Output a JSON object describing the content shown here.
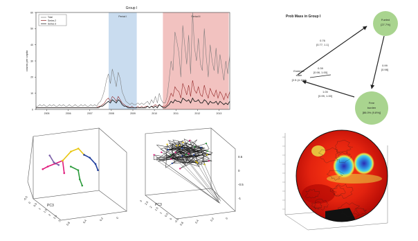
{
  "figure": {
    "accent_colors": {
      "blue_band": "#c9dcef",
      "red_band": "#f2c2c0",
      "node_green": "#a9d48f",
      "series_dark": "#1b1b1b",
      "series_red": "#8b1a1a",
      "series_gray": "#777777"
    }
  },
  "chart_data": [
    {
      "type": "line",
      "title": "Group I",
      "ylabel": "counts per capita",
      "legend": {
        "placement": "top-left",
        "entries": [
          "Total",
          "Series 2",
          "Series 3"
        ]
      },
      "bands": [
        {
          "label": "Period I",
          "color": "#c9dcef",
          "x_range": [
            0.375,
            0.52
          ]
        },
        {
          "label": "Period II",
          "color": "#f2c2c0",
          "x_range": [
            0.655,
            0.995
          ]
        }
      ],
      "x_ticks": [
        "2005",
        "2006",
        "2007",
        "2008",
        "2009",
        "2010",
        "2011",
        "2012",
        "2013"
      ],
      "y_ticks": [
        "0",
        "10",
        "20",
        "30",
        "40",
        "50",
        "60"
      ],
      "ylim": [
        0,
        60
      ],
      "series": [
        {
          "name": "Total",
          "color": "#777777",
          "values": [
            2,
            2,
            3,
            2,
            3,
            2,
            2,
            3,
            2,
            3,
            2,
            2,
            3,
            2,
            3,
            2,
            2,
            3,
            2,
            2,
            3,
            2,
            2,
            3,
            2,
            3,
            2,
            2,
            3,
            2,
            3,
            2,
            4,
            5,
            8,
            12,
            18,
            22,
            16,
            25,
            20,
            14,
            23,
            19,
            11,
            8,
            5,
            4,
            3,
            4,
            3,
            3,
            4,
            3,
            4,
            3,
            4,
            5,
            3,
            6,
            4,
            8,
            4,
            10,
            6,
            4,
            4,
            8,
            18,
            30,
            24,
            48,
            42,
            35,
            20,
            52,
            40,
            28,
            46,
            22,
            60,
            38,
            30,
            44,
            28,
            24,
            50,
            32,
            20,
            40,
            30,
            24,
            38,
            22,
            34,
            26,
            18,
            30,
            22,
            34
          ]
        },
        {
          "name": "Series 2",
          "color": "#8b1a1a",
          "values": [
            1,
            1,
            1,
            1,
            1,
            1,
            1,
            1,
            1,
            1,
            1,
            1,
            1,
            1,
            1,
            1,
            1,
            1,
            1,
            1,
            1,
            1,
            1,
            1,
            1,
            1,
            1,
            1,
            1,
            1,
            1,
            1,
            2,
            2,
            3,
            4,
            6,
            7,
            5,
            8,
            7,
            5,
            8,
            6,
            4,
            3,
            2,
            2,
            1,
            2,
            1,
            1,
            2,
            1,
            2,
            1,
            2,
            2,
            1,
            2,
            2,
            3,
            2,
            3,
            2,
            2,
            2,
            3,
            6,
            10,
            8,
            14,
            12,
            11,
            7,
            16,
            13,
            9,
            15,
            8,
            18,
            12,
            10,
            14,
            9,
            8,
            15,
            10,
            7,
            13,
            10,
            8,
            12,
            7,
            11,
            9,
            6,
            10,
            7,
            11
          ]
        },
        {
          "name": "Series 3",
          "color": "#1b1b1b",
          "values": [
            1,
            1,
            1,
            1,
            1,
            1,
            1,
            1,
            1,
            1,
            1,
            1,
            1,
            1,
            1,
            1,
            1,
            1,
            1,
            1,
            1,
            1,
            1,
            1,
            1,
            1,
            1,
            1,
            1,
            1,
            1,
            1,
            1,
            2,
            2,
            3,
            4,
            5,
            4,
            6,
            5,
            4,
            6,
            5,
            3,
            2,
            2,
            1,
            1,
            1,
            1,
            1,
            1,
            1,
            1,
            1,
            1,
            2,
            1,
            2,
            1,
            2,
            1,
            3,
            2,
            1,
            1,
            2,
            3,
            5,
            4,
            6,
            5,
            5,
            4,
            7,
            6,
            5,
            6,
            4,
            7,
            5,
            5,
            6,
            4,
            4,
            6,
            5,
            3,
            5,
            4,
            4,
            5,
            3,
            5,
            4,
            3,
            4,
            3,
            5
          ]
        }
      ]
    },
    {
      "type": "diagram",
      "title": "Prob Mass in Group I",
      "nodes": [
        {
          "id": "top",
          "lines": [
            "Fueled",
            "[27.7%]"
          ]
        },
        {
          "id": "left",
          "lines": [
            "Endemic",
            "state",
            "[2.5 (4.1%)]"
          ]
        },
        {
          "id": "bottom",
          "lines": [
            "Free",
            "burden",
            "[86.0% (9.8%)]"
          ]
        }
      ],
      "edges": [
        {
          "from": "left",
          "to": "top",
          "label": [
            "0.76",
            "[0.77, 1.1]"
          ]
        },
        {
          "from": "top",
          "to": "bottom",
          "label": [
            "0.99",
            "[0.98]"
          ]
        },
        {
          "from": "bottom",
          "to": "left",
          "label": [
            "1.00",
            "[0.99, 1.00]"
          ]
        },
        {
          "from": "left",
          "to": "left-inner",
          "label": [
            "0.39",
            "[0.98, 1.00]"
          ]
        }
      ]
    },
    {
      "type": "scatter3d",
      "axis_label": "PC3",
      "x_ticks": [
        "-0.5",
        "0",
        "0.5",
        "1",
        "1.5",
        "2",
        "2.5",
        "3"
      ],
      "y_ticks": [
        "0.6",
        "0.4",
        "0.2",
        "0"
      ],
      "z_ticks": [],
      "trajectories": [
        {
          "color": "#e0197b",
          "points": [
            [
              0.05,
              0.2,
              0.45
            ],
            [
              0.1,
              0.3,
              0.5
            ],
            [
              0.2,
              0.35,
              0.55
            ],
            [
              0.3,
              0.4,
              0.6
            ],
            [
              0.35,
              0.3,
              0.4
            ]
          ]
        },
        {
          "color": "#e8c60f",
          "points": [
            [
              0.3,
              0.4,
              0.6
            ],
            [
              0.4,
              0.5,
              0.75
            ],
            [
              0.5,
              0.55,
              0.8
            ],
            [
              0.6,
              0.5,
              0.7
            ]
          ]
        },
        {
          "color": "#2a9a3a",
          "points": [
            [
              0.45,
              0.3,
              0.5
            ],
            [
              0.55,
              0.35,
              0.45
            ],
            [
              0.6,
              0.25,
              0.3
            ],
            [
              0.65,
              0.2,
              0.2
            ]
          ]
        },
        {
          "color": "#203f9e",
          "points": [
            [
              0.6,
              0.5,
              0.7
            ],
            [
              0.7,
              0.45,
              0.65
            ],
            [
              0.8,
              0.4,
              0.55
            ],
            [
              0.85,
              0.35,
              0.45
            ]
          ]
        },
        {
          "color": "#7b5ea7",
          "points": [
            [
              0.05,
              0.6,
              0.7
            ],
            [
              0.1,
              0.65,
              0.6
            ],
            [
              0.2,
              0.55,
              0.55
            ]
          ]
        }
      ]
    },
    {
      "type": "scatter3d",
      "axis_label": "PC3",
      "x_ticks": [
        "3",
        "2.5",
        "2",
        "1.5",
        "1",
        "0.5",
        "0",
        "-0.5"
      ],
      "y_ticks": [
        "0.6",
        "0.4",
        "0.2",
        "0"
      ],
      "z_ticks": [
        "0.5",
        "0",
        "-0.5",
        "-1"
      ]
    },
    {
      "type": "heatmap",
      "shape": "sphere",
      "colormap": [
        "#2d2ab5",
        "#2fa6e8",
        "#e8e84a",
        "#e83a17",
        "#a50000"
      ]
    }
  ]
}
